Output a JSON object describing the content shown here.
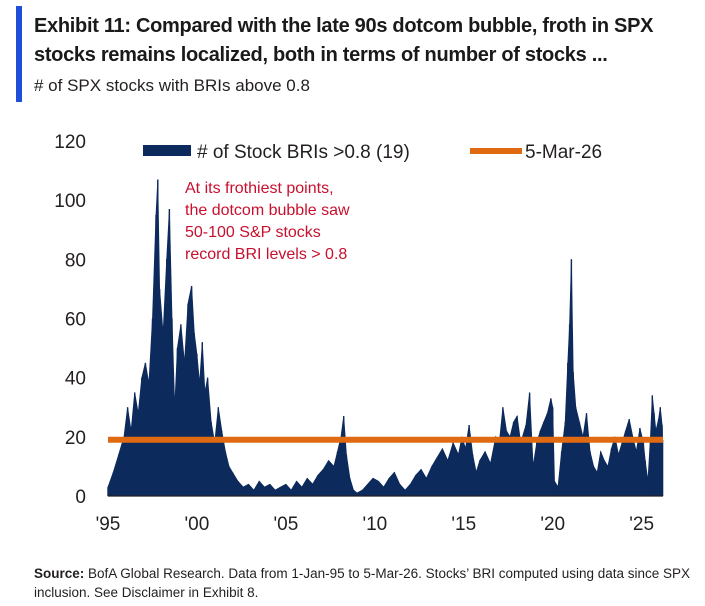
{
  "header": {
    "title": "Exhibit 11: Compared with the late 90s dotcom bubble, froth in SPX stocks remains localized, both in terms of number of stocks ...",
    "subtitle": "# of SPX stocks with BRIs above 0.8"
  },
  "footer": {
    "source_label": "Source:",
    "source_text": "BofA Global Research. Data from 1-Jan-95 to 5-Mar-26. Stocks’ BRI computed using data since SPX inclusion. See Disclaimer in Exhibit 8."
  },
  "colors": {
    "series": "#0d2a5c",
    "reference": "#e06a12",
    "annotation": "#c8102e",
    "accent": "#1f4fd8"
  },
  "chart_data": {
    "type": "area",
    "title": "# of SPX stocks with BRIs above 0.8",
    "ylim": [
      0,
      120
    ],
    "yticks": [
      "0",
      "20",
      "40",
      "60",
      "80",
      "100",
      "120"
    ],
    "xlim": [
      1995,
      2026.2
    ],
    "xticks": [
      {
        "label": "'95",
        "year": 1995
      },
      {
        "label": "'00",
        "year": 2000
      },
      {
        "label": "'05",
        "year": 2005
      },
      {
        "label": "'10",
        "year": 2010
      },
      {
        "label": "'15",
        "year": 2015
      },
      {
        "label": "'20",
        "year": 2020
      },
      {
        "label": "'25",
        "year": 2025
      }
    ],
    "legend": [
      {
        "label": "# of Stock BRIs >0.8 (19)",
        "kind": "area"
      },
      {
        "label": "5-Mar-26",
        "kind": "line"
      }
    ],
    "reference_line": {
      "label": "5-Mar-26",
      "value": 19
    },
    "annotation": [
      "At its frothiest points,",
      "the dotcom bubble saw",
      "50-100 S&P stocks",
      "record BRI levels > 0.8"
    ],
    "series": [
      {
        "name": "# of Stock BRIs >0.8 (19)",
        "points": [
          [
            1995.0,
            3
          ],
          [
            1995.3,
            8
          ],
          [
            1995.6,
            14
          ],
          [
            1995.9,
            20
          ],
          [
            1996.1,
            30
          ],
          [
            1996.3,
            22
          ],
          [
            1996.5,
            35
          ],
          [
            1996.7,
            28
          ],
          [
            1996.9,
            40
          ],
          [
            1997.1,
            45
          ],
          [
            1997.3,
            38
          ],
          [
            1997.5,
            60
          ],
          [
            1997.7,
            95
          ],
          [
            1997.8,
            107
          ],
          [
            1997.9,
            70
          ],
          [
            1998.1,
            55
          ],
          [
            1998.3,
            80
          ],
          [
            1998.45,
            97
          ],
          [
            1998.6,
            60
          ],
          [
            1998.75,
            30
          ],
          [
            1998.9,
            50
          ],
          [
            1999.1,
            58
          ],
          [
            1999.3,
            45
          ],
          [
            1999.5,
            65
          ],
          [
            1999.7,
            71
          ],
          [
            1999.85,
            55
          ],
          [
            2000.0,
            48
          ],
          [
            2000.15,
            38
          ],
          [
            2000.3,
            52
          ],
          [
            2000.45,
            35
          ],
          [
            2000.6,
            40
          ],
          [
            2000.8,
            25
          ],
          [
            2001.0,
            18
          ],
          [
            2001.2,
            30
          ],
          [
            2001.4,
            22
          ],
          [
            2001.6,
            15
          ],
          [
            2001.8,
            10
          ],
          [
            2002.0,
            8
          ],
          [
            2002.3,
            5
          ],
          [
            2002.6,
            3
          ],
          [
            2002.9,
            4
          ],
          [
            2003.2,
            2
          ],
          [
            2003.5,
            5
          ],
          [
            2003.8,
            3
          ],
          [
            2004.1,
            4
          ],
          [
            2004.4,
            2
          ],
          [
            2004.7,
            3
          ],
          [
            2005.0,
            4
          ],
          [
            2005.3,
            2
          ],
          [
            2005.6,
            5
          ],
          [
            2005.9,
            3
          ],
          [
            2006.2,
            6
          ],
          [
            2006.5,
            4
          ],
          [
            2006.8,
            7
          ],
          [
            2007.1,
            9
          ],
          [
            2007.4,
            12
          ],
          [
            2007.7,
            10
          ],
          [
            2007.9,
            15
          ],
          [
            2008.1,
            20
          ],
          [
            2008.25,
            27
          ],
          [
            2008.4,
            14
          ],
          [
            2008.6,
            6
          ],
          [
            2008.8,
            2
          ],
          [
            2009.0,
            1
          ],
          [
            2009.3,
            2
          ],
          [
            2009.6,
            4
          ],
          [
            2009.9,
            6
          ],
          [
            2010.2,
            5
          ],
          [
            2010.5,
            3
          ],
          [
            2010.8,
            6
          ],
          [
            2011.1,
            8
          ],
          [
            2011.4,
            4
          ],
          [
            2011.7,
            2
          ],
          [
            2012.0,
            4
          ],
          [
            2012.3,
            7
          ],
          [
            2012.6,
            9
          ],
          [
            2012.9,
            6
          ],
          [
            2013.2,
            10
          ],
          [
            2013.5,
            13
          ],
          [
            2013.8,
            16
          ],
          [
            2014.1,
            12
          ],
          [
            2014.4,
            18
          ],
          [
            2014.7,
            14
          ],
          [
            2014.9,
            20
          ],
          [
            2015.1,
            16
          ],
          [
            2015.3,
            24
          ],
          [
            2015.5,
            14
          ],
          [
            2015.7,
            8
          ],
          [
            2015.9,
            12
          ],
          [
            2016.2,
            15
          ],
          [
            2016.5,
            11
          ],
          [
            2016.8,
            20
          ],
          [
            2017.0,
            18
          ],
          [
            2017.2,
            30
          ],
          [
            2017.4,
            22
          ],
          [
            2017.6,
            20
          ],
          [
            2017.8,
            25
          ],
          [
            2018.0,
            27
          ],
          [
            2018.2,
            18
          ],
          [
            2018.5,
            24
          ],
          [
            2018.7,
            35
          ],
          [
            2018.9,
            10
          ],
          [
            2019.1,
            18
          ],
          [
            2019.3,
            22
          ],
          [
            2019.5,
            25
          ],
          [
            2019.7,
            28
          ],
          [
            2019.9,
            33
          ],
          [
            2020.0,
            30
          ],
          [
            2020.1,
            5
          ],
          [
            2020.3,
            3
          ],
          [
            2020.5,
            15
          ],
          [
            2020.7,
            25
          ],
          [
            2020.85,
            45
          ],
          [
            2020.95,
            58
          ],
          [
            2021.05,
            80
          ],
          [
            2021.15,
            42
          ],
          [
            2021.3,
            30
          ],
          [
            2021.5,
            25
          ],
          [
            2021.7,
            20
          ],
          [
            2021.9,
            28
          ],
          [
            2022.1,
            15
          ],
          [
            2022.3,
            10
          ],
          [
            2022.5,
            8
          ],
          [
            2022.7,
            15
          ],
          [
            2022.9,
            12
          ],
          [
            2023.1,
            10
          ],
          [
            2023.3,
            16
          ],
          [
            2023.5,
            20
          ],
          [
            2023.7,
            14
          ],
          [
            2023.9,
            18
          ],
          [
            2024.1,
            22
          ],
          [
            2024.3,
            26
          ],
          [
            2024.5,
            20
          ],
          [
            2024.7,
            15
          ],
          [
            2024.9,
            23
          ],
          [
            2025.1,
            18
          ],
          [
            2025.2,
            12
          ],
          [
            2025.35,
            5
          ],
          [
            2025.5,
            20
          ],
          [
            2025.6,
            34
          ],
          [
            2025.7,
            28
          ],
          [
            2025.8,
            22
          ],
          [
            2025.95,
            26
          ],
          [
            2026.05,
            30
          ],
          [
            2026.15,
            24
          ],
          [
            2026.18,
            19
          ]
        ]
      }
    ]
  }
}
